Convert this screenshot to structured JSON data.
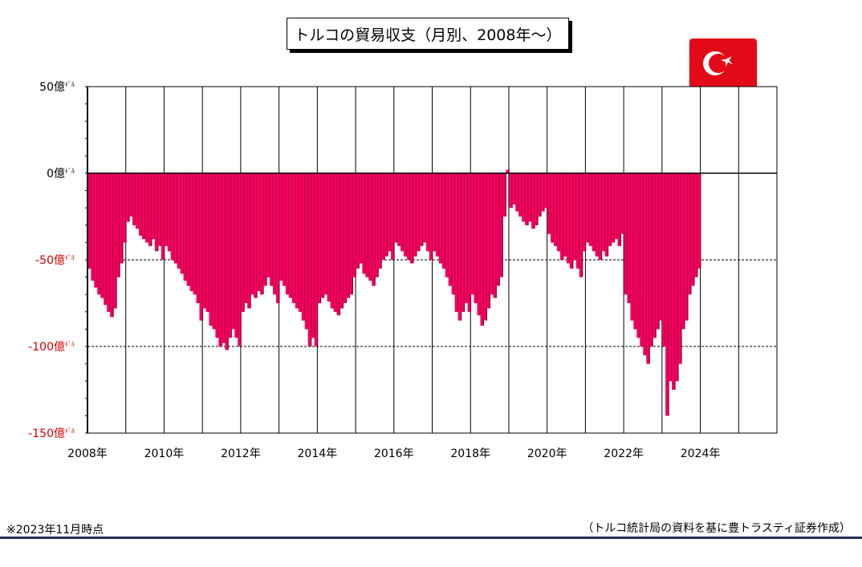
{
  "title": "トルコの貿易収支（月別、2008年～）",
  "note_left": "※2023年11月時点",
  "note_right": "（トルコ統計局の資料を基に豊トラスティ証券作成）",
  "flag_icon": "turkey-flag-icon",
  "colors": {
    "bar": "#f5005e",
    "bar_shadow": "#8a0033",
    "negative_label": "#d40000",
    "rule": "#1f2d50"
  },
  "chart_data": {
    "type": "bar",
    "title": "トルコの貿易収支（月別、2008年～）",
    "unit": "億ドル",
    "ylim": [
      -150,
      50
    ],
    "yticks": [
      {
        "value": 50,
        "label": "50億ﾄﾞﾙ"
      },
      {
        "value": 0,
        "label": "0億ﾄﾞﾙ"
      },
      {
        "value": -50,
        "label": "-50億ﾄﾞﾙ"
      },
      {
        "value": -100,
        "label": "-100億ﾄﾞﾙ"
      },
      {
        "value": -150,
        "label": "-150億ﾄﾞﾙ"
      }
    ],
    "xticks": [
      "2008年",
      "2010年",
      "2012年",
      "2014年",
      "2016年",
      "2018年",
      "2020年",
      "2022年",
      "2024年"
    ],
    "x_start_year": 2008,
    "x_end_year": 2026,
    "grid": {
      "vertical_yearly": true,
      "dashed_at": [
        -50,
        -100
      ]
    },
    "annual_monthly_values": {
      "2008": [
        -55,
        -62,
        -66,
        -70,
        -72,
        -76,
        -80,
        -83,
        -78,
        -60,
        -52,
        -40
      ],
      "2009": [
        -28,
        -25,
        -30,
        -32,
        -36,
        -38,
        -40,
        -42,
        -38,
        -45,
        -42,
        -50
      ],
      "2010": [
        -42,
        -45,
        -50,
        -52,
        -55,
        -58,
        -62,
        -65,
        -68,
        -70,
        -75,
        -85
      ],
      "2011": [
        -78,
        -80,
        -88,
        -90,
        -95,
        -100,
        -98,
        -102,
        -95,
        -90,
        -95,
        -100
      ],
      "2012": [
        -80,
        -75,
        -78,
        -70,
        -72,
        -68,
        -70,
        -65,
        -60,
        -65,
        -70,
        -75
      ],
      "2013": [
        -62,
        -65,
        -70,
        -72,
        -75,
        -78,
        -80,
        -85,
        -90,
        -100,
        -95,
        -100
      ],
      "2014": [
        -75,
        -72,
        -70,
        -74,
        -78,
        -80,
        -82,
        -78,
        -75,
        -72,
        -70,
        -60
      ],
      "2015": [
        -55,
        -52,
        -58,
        -60,
        -62,
        -65,
        -60,
        -55,
        -50,
        -48,
        -45,
        -50
      ],
      "2016": [
        -40,
        -42,
        -45,
        -48,
        -50,
        -52,
        -48,
        -45,
        -42,
        -40,
        -45,
        -50
      ],
      "2017": [
        -45,
        -48,
        -52,
        -55,
        -60,
        -65,
        -70,
        -80,
        -85,
        -80,
        -75,
        -80
      ],
      "2018": [
        -70,
        -75,
        -82,
        -88,
        -85,
        -78,
        -70,
        -72,
        -65,
        -60,
        -25,
        2
      ],
      "2019": [
        -20,
        -18,
        -22,
        -25,
        -28,
        -30,
        -28,
        -32,
        -30,
        -25,
        -22,
        -20
      ],
      "2020": [
        -35,
        -40,
        -42,
        -45,
        -50,
        -48,
        -52,
        -55,
        -50,
        -55,
        -60,
        -45
      ],
      "2021": [
        -40,
        -42,
        -45,
        -48,
        -50,
        -45,
        -48,
        -42,
        -40,
        -38,
        -42,
        -35
      ],
      "2022": [
        -70,
        -75,
        -85,
        -90,
        -95,
        -100,
        -105,
        -110,
        -100,
        -95,
        -90,
        -85
      ],
      "2023": [
        -100,
        -140,
        -120,
        -125,
        -120,
        -110,
        -90,
        -85,
        -70,
        -65,
        -60,
        -55
      ]
    }
  }
}
